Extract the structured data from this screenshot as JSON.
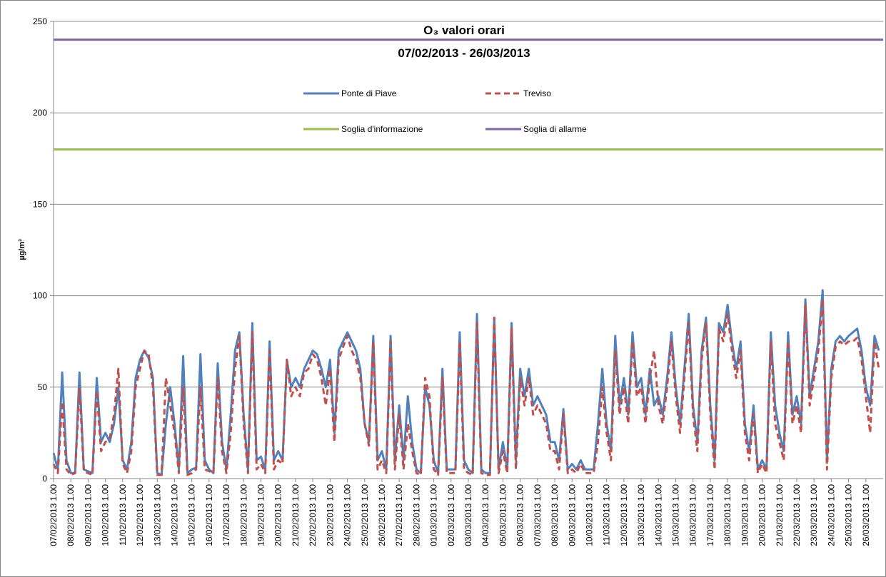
{
  "chart_data": {
    "type": "line",
    "title": "O₃ valori orari",
    "subtitle": "07/02/2013 - 26/03/2013",
    "y_label": "µg/m³",
    "ylim": [
      0,
      250
    ],
    "yticks": [
      0,
      50,
      100,
      150,
      200,
      250
    ],
    "grid": true,
    "categories": [
      "07/02/2013 1.00",
      null,
      null,
      null,
      "08/02/2013 1.00",
      null,
      null,
      null,
      "09/02/2013 1.00",
      null,
      null,
      null,
      "10/02/2013 1.00",
      null,
      null,
      null,
      "11/02/2013 1.00",
      null,
      null,
      null,
      "12/02/2013 1.00",
      null,
      null,
      null,
      "13/02/2013 1.00",
      null,
      null,
      null,
      "14/02/2013 1.00",
      null,
      null,
      null,
      "15/02/2013 1.00",
      null,
      null,
      null,
      "16/02/2013 1.00",
      null,
      null,
      null,
      "17/02/2013 1.00",
      null,
      null,
      null,
      "18/02/2013 1.00",
      null,
      null,
      null,
      "19/02/2013 1.00",
      null,
      null,
      null,
      "20/02/2013 1.00",
      null,
      null,
      null,
      "21/02/2013 1.00",
      null,
      null,
      null,
      "22/02/2013 1.00",
      null,
      null,
      null,
      "23/02/2013 1.00",
      null,
      null,
      null,
      "24/02/2013 1.00",
      null,
      null,
      null,
      "25/02/2013 1.00",
      null,
      null,
      null,
      "26/02/2013 1.00",
      null,
      null,
      null,
      "27/02/2013 1.00",
      null,
      null,
      null,
      "28/02/2013 1.00",
      null,
      null,
      null,
      "01/03/2013 1.00",
      null,
      null,
      null,
      "02/03/2013 1.00",
      null,
      null,
      null,
      "03/03/2013 1.00",
      null,
      null,
      null,
      "04/03/2013 1.00",
      null,
      null,
      null,
      "05/03/2013 1.00",
      null,
      null,
      null,
      "06/03/2013 1.00",
      null,
      null,
      null,
      "07/03/2013 1.00",
      null,
      null,
      null,
      "08/03/2013 1.00",
      null,
      null,
      null,
      "09/03/2013 1.00",
      null,
      null,
      null,
      "10/03/2013 1.00",
      null,
      null,
      null,
      "11/03/2013 1.00",
      null,
      null,
      null,
      "12/03/2013 1.00",
      null,
      null,
      null,
      "13/03/2013 1.00",
      null,
      null,
      null,
      "14/03/2013 1.00",
      null,
      null,
      null,
      "15/03/2013 1.00",
      null,
      null,
      null,
      "16/03/2013 1.00",
      null,
      null,
      null,
      "17/03/2013 1.00",
      null,
      null,
      null,
      "18/03/2013 1.00",
      null,
      null,
      null,
      "19/03/2013 1.00",
      null,
      null,
      null,
      "20/03/2013 1.00",
      null,
      null,
      null,
      "21/03/2013 1.00",
      null,
      null,
      null,
      "22/03/2013 1.00",
      null,
      null,
      null,
      "23/03/2013 1.00",
      null,
      null,
      null,
      "24/03/2013 1.00",
      null,
      null,
      null,
      "25/03/2013 1.00",
      null,
      null,
      null,
      "26/03/2013 1.00",
      null,
      null,
      null
    ],
    "series": [
      {
        "name": "Ponte di Piave",
        "color": "#4f81bd",
        "dash": false,
        "values": [
          14,
          5,
          58,
          10,
          3,
          3,
          58,
          5,
          4,
          3,
          55,
          20,
          25,
          20,
          30,
          50,
          10,
          5,
          20,
          55,
          65,
          70,
          66,
          55,
          3,
          2,
          30,
          50,
          30,
          5,
          67,
          3,
          5,
          6,
          68,
          10,
          5,
          3,
          63,
          20,
          5,
          35,
          70,
          80,
          35,
          5,
          85,
          10,
          12,
          5,
          75,
          10,
          15,
          10,
          65,
          50,
          55,
          50,
          60,
          65,
          70,
          68,
          60,
          50,
          65,
          25,
          70,
          75,
          80,
          75,
          70,
          60,
          30,
          20,
          78,
          10,
          15,
          5,
          78,
          10,
          40,
          10,
          45,
          20,
          5,
          3,
          50,
          40,
          10,
          3,
          60,
          5,
          5,
          5,
          80,
          10,
          5,
          3,
          90,
          5,
          3,
          3,
          88,
          5,
          20,
          5,
          85,
          10,
          60,
          45,
          60,
          40,
          45,
          40,
          35,
          20,
          20,
          10,
          38,
          5,
          8,
          5,
          10,
          5,
          5,
          5,
          30,
          60,
          30,
          15,
          78,
          40,
          55,
          35,
          80,
          50,
          55,
          35,
          60,
          40,
          45,
          35,
          55,
          80,
          50,
          30,
          60,
          90,
          40,
          20,
          70,
          88,
          40,
          10,
          85,
          80,
          95,
          75,
          60,
          75,
          30,
          15,
          40,
          5,
          10,
          5,
          80,
          40,
          25,
          15,
          80,
          35,
          45,
          30,
          98,
          45,
          60,
          75,
          103,
          10,
          60,
          75,
          78,
          75,
          78,
          80,
          82,
          70,
          50,
          40,
          78,
          70
        ]
      },
      {
        "name": "Treviso",
        "color": "#c0504d",
        "dash": true,
        "values": [
          8,
          3,
          42,
          5,
          2,
          3,
          50,
          4,
          3,
          2,
          48,
          15,
          20,
          22,
          35,
          60,
          8,
          3,
          15,
          50,
          60,
          70,
          68,
          50,
          2,
          2,
          55,
          40,
          25,
          3,
          50,
          2,
          3,
          5,
          50,
          5,
          4,
          3,
          55,
          15,
          3,
          25,
          60,
          78,
          30,
          3,
          80,
          5,
          8,
          3,
          70,
          5,
          10,
          8,
          65,
          45,
          50,
          45,
          58,
          60,
          68,
          65,
          55,
          40,
          60,
          20,
          65,
          72,
          78,
          70,
          65,
          55,
          30,
          18,
          75,
          5,
          10,
          3,
          75,
          5,
          35,
          5,
          30,
          15,
          3,
          2,
          55,
          45,
          5,
          2,
          55,
          3,
          3,
          3,
          75,
          5,
          3,
          2,
          85,
          3,
          2,
          2,
          88,
          3,
          15,
          3,
          82,
          5,
          55,
          40,
          55,
          35,
          40,
          35,
          30,
          15,
          15,
          5,
          35,
          3,
          5,
          3,
          8,
          3,
          3,
          3,
          20,
          50,
          25,
          10,
          70,
          35,
          50,
          30,
          75,
          45,
          50,
          30,
          55,
          70,
          40,
          30,
          50,
          75,
          45,
          25,
          55,
          85,
          35,
          15,
          65,
          85,
          35,
          5,
          82,
          75,
          90,
          70,
          55,
          70,
          25,
          10,
          35,
          3,
          8,
          3,
          75,
          30,
          20,
          10,
          75,
          30,
          40,
          25,
          95,
          40,
          55,
          70,
          98,
          5,
          55,
          72,
          75,
          73,
          75,
          75,
          77,
          65,
          45,
          25,
          75,
          60
        ]
      }
    ],
    "reference_lines": [
      {
        "name": "Soglia d'informazione",
        "color": "#9bbb59",
        "value": 180
      },
      {
        "name": "Soglia di allarme",
        "color": "#8064a2",
        "value": 240
      }
    ]
  }
}
